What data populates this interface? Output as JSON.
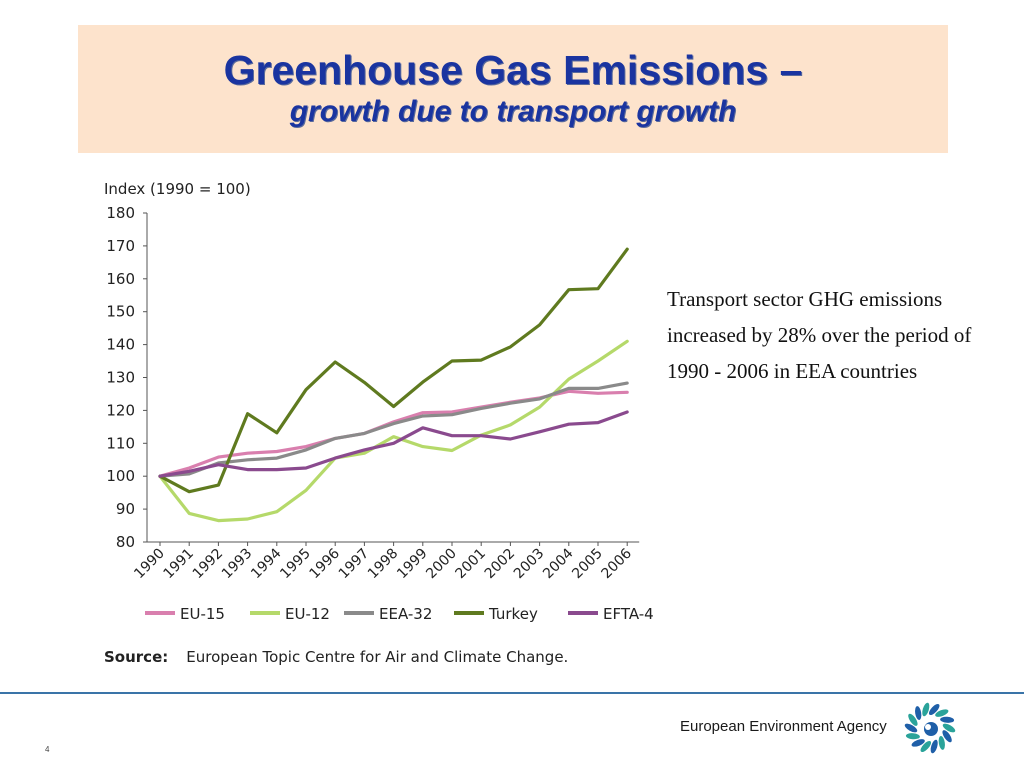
{
  "slide": {
    "title_main": "Greenhouse Gas Emissions –",
    "title_sub": "growth due to transport growth",
    "side_text": "Transport sector GHG emissions increased by 28% over the period of 1990 - 2006 in EEA countries",
    "source_label": "Source:",
    "source_text": "European Topic Centre for Air and Climate Change.",
    "agency": "European Environment Agency",
    "page_number": "4",
    "logo_icon": "eea-logo-icon"
  },
  "chart_data": {
    "type": "line",
    "ylabel": "Index (1990 = 100)",
    "ylim": [
      80,
      180
    ],
    "yticks": [
      80,
      90,
      100,
      110,
      120,
      130,
      140,
      150,
      160,
      170,
      180
    ],
    "x": [
      "1990",
      "1991",
      "1992",
      "1993",
      "1994",
      "1995",
      "1996",
      "1997",
      "1998",
      "1999",
      "2000",
      "2001",
      "2002",
      "2003",
      "2004",
      "2005",
      "2006"
    ],
    "grid": false,
    "legend": "bottom",
    "series": [
      {
        "name": "EU-15",
        "color": "#d97fae",
        "values": [
          100,
          102.5,
          105.8,
          107,
          107.5,
          109,
          111.5,
          113,
          116.5,
          119.3,
          119.5,
          121,
          122.5,
          123.8,
          125.8,
          125.2,
          125.5
        ]
      },
      {
        "name": "EU-12",
        "color": "#b5d96a",
        "values": [
          100,
          88.7,
          86.5,
          87,
          89.2,
          95.7,
          105.5,
          107,
          112,
          109,
          107.8,
          112.5,
          115.6,
          121,
          129.5,
          135,
          141
        ]
      },
      {
        "name": "EEA-32",
        "color": "#8a8a8a",
        "values": [
          100,
          100.7,
          104,
          105,
          105.5,
          108,
          111.5,
          113,
          116,
          118.3,
          118.7,
          120.6,
          122.2,
          123.5,
          126.7,
          126.7,
          128.3
        ]
      },
      {
        "name": "Turkey",
        "color": "#5f7a1f",
        "values": [
          100,
          95.3,
          97.3,
          119,
          113.2,
          126.3,
          134.7,
          128.5,
          121.2,
          128.6,
          135,
          135.3,
          139.3,
          146,
          156.7,
          157,
          169
        ]
      },
      {
        "name": "EFTA-4",
        "color": "#8a4a8e",
        "values": [
          100,
          101.5,
          103.5,
          102,
          102,
          102.5,
          105.5,
          108,
          110,
          114.7,
          112.3,
          112.3,
          111.3,
          113.5,
          115.8,
          116.3,
          119.5
        ]
      }
    ]
  }
}
